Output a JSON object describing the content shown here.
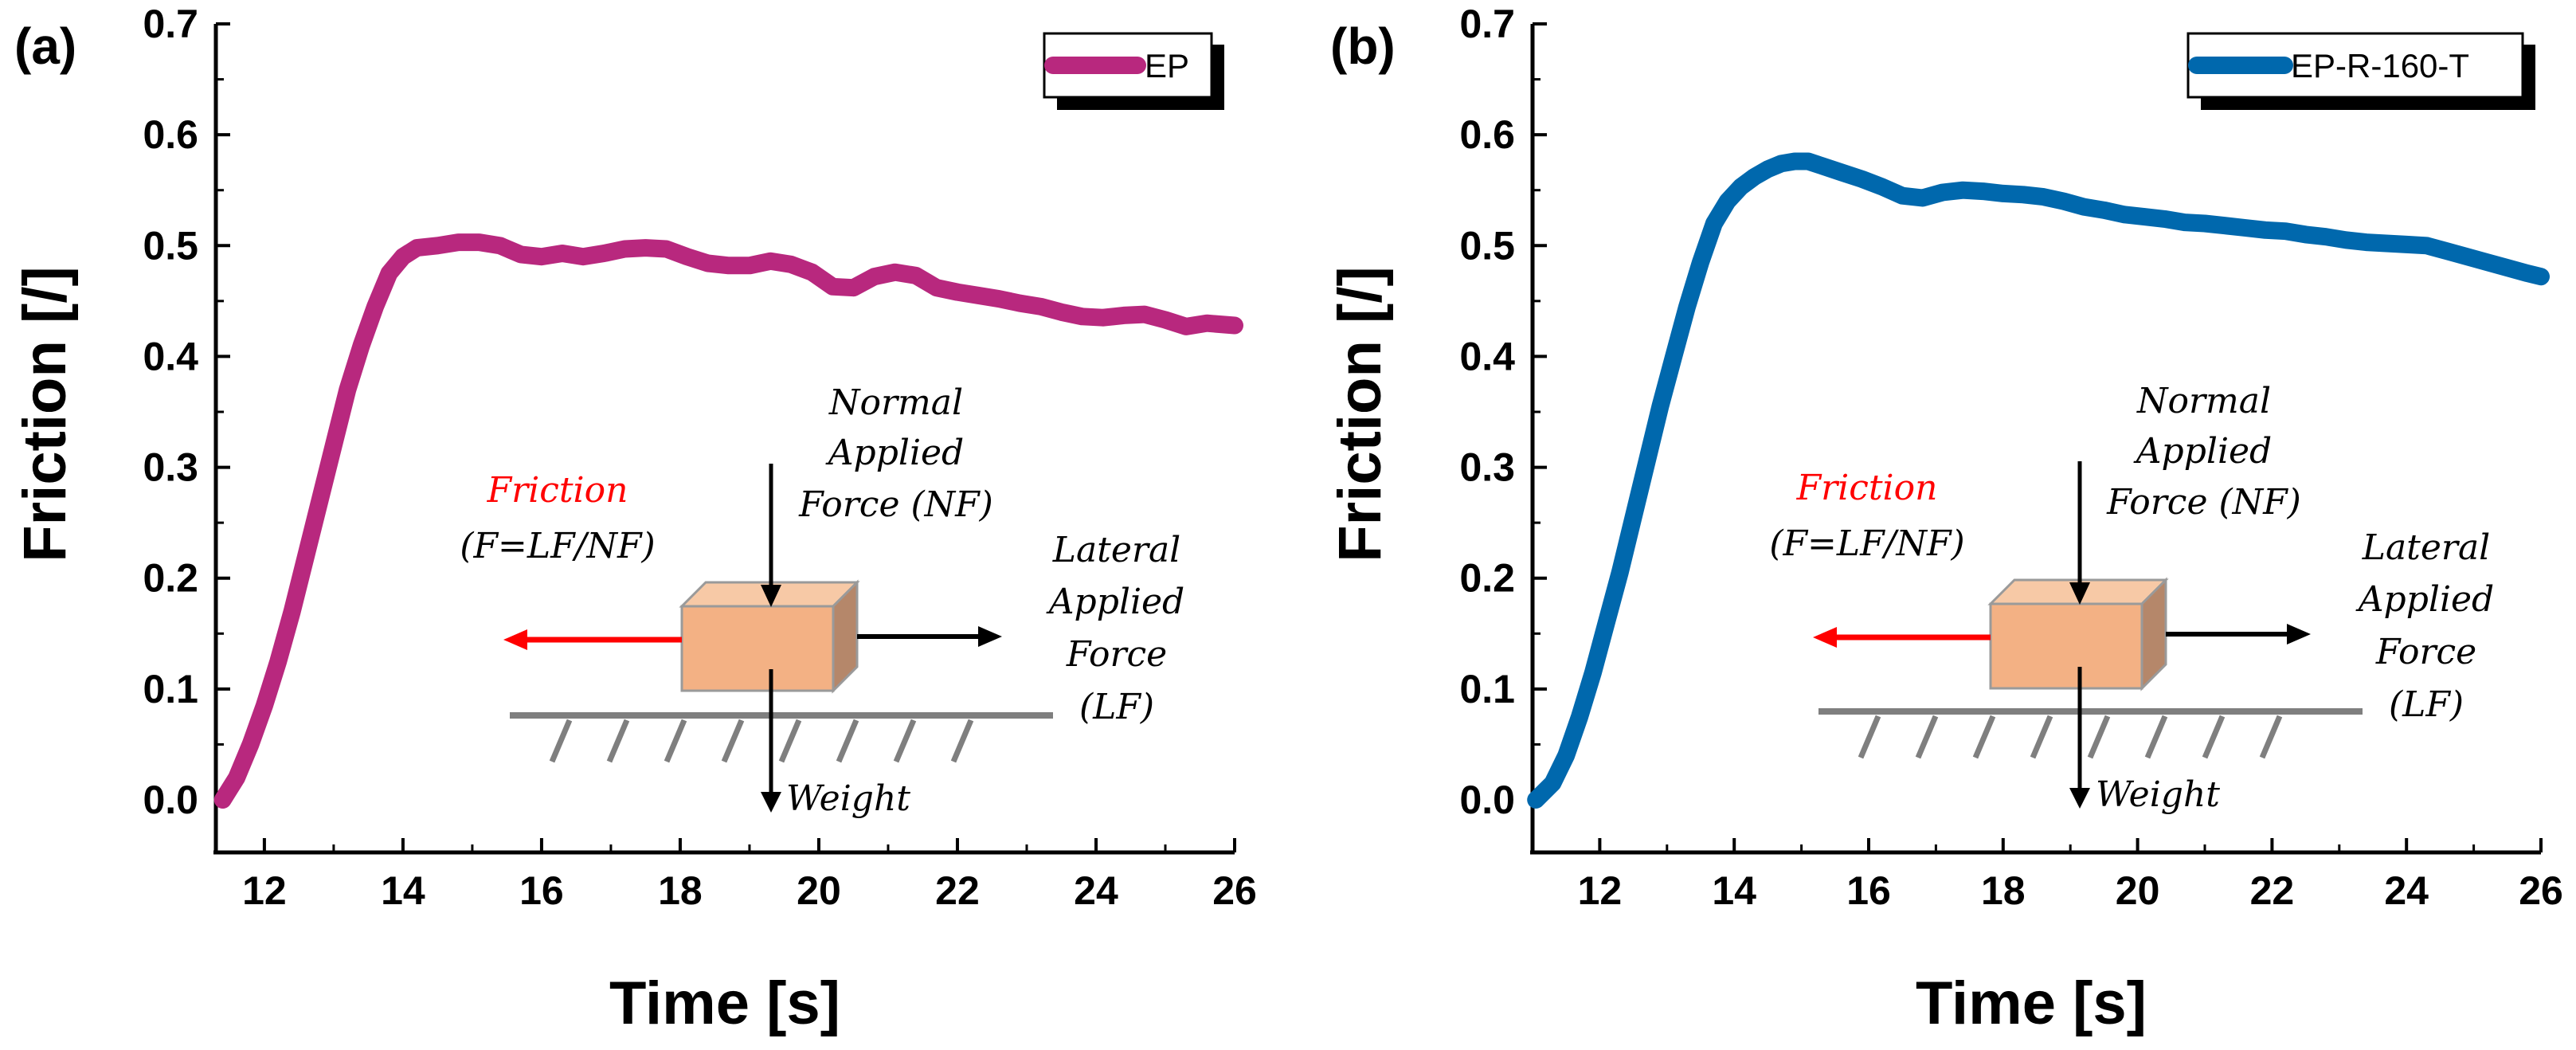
{
  "colors": {
    "ep": "#b8287e",
    "ep_r_160_t": "#0068ad",
    "friction_arrow": "#ff0000",
    "block_front": "#f3b184",
    "block_top": "#f7c9a6",
    "block_side": "#b5876a",
    "ground": "#7f7f7f"
  },
  "diagram": {
    "normal_line1": "Normal",
    "normal_line2": "Applied",
    "normal_line3": "Force (NF)",
    "friction_line1": "Friction",
    "friction_line2": "(F=LF/NF)",
    "lateral_line1": "Lateral",
    "lateral_line2": "Applied",
    "lateral_line3": "Force",
    "lateral_line4": "(LF)",
    "weight": "Weight"
  },
  "chart_data": [
    {
      "type": "line",
      "panel_label": "(a)",
      "xlabel": "Time [s]",
      "ylabel": "Friction [/]",
      "xlim": [
        11.3,
        26
      ],
      "ylim": [
        -0.01,
        0.7
      ],
      "xticks": [
        "12",
        "14",
        "16",
        "18",
        "20",
        "22",
        "24",
        "26"
      ],
      "yticks": [
        "0.0",
        "0.1",
        "0.2",
        "0.3",
        "0.4",
        "0.5",
        "0.6",
        "0.7"
      ],
      "legend_position": "top-right",
      "series": [
        {
          "name": "EP",
          "x": [
            11.4,
            11.6,
            11.8,
            12.0,
            12.2,
            12.4,
            12.6,
            12.8,
            13.0,
            13.2,
            13.4,
            13.6,
            13.8,
            14.0,
            14.2,
            14.5,
            14.8,
            15.1,
            15.4,
            15.7,
            16.0,
            16.3,
            16.6,
            16.9,
            17.2,
            17.5,
            17.8,
            18.1,
            18.4,
            18.7,
            19.0,
            19.3,
            19.6,
            19.9,
            20.2,
            20.5,
            20.8,
            21.1,
            21.4,
            21.7,
            22.0,
            22.3,
            22.6,
            22.9,
            23.2,
            23.5,
            23.8,
            24.1,
            24.4,
            24.7,
            25.0,
            25.3,
            25.6,
            26.0
          ],
          "y": [
            0.0,
            0.02,
            0.05,
            0.085,
            0.125,
            0.17,
            0.22,
            0.27,
            0.32,
            0.37,
            0.41,
            0.445,
            0.475,
            0.49,
            0.498,
            0.5,
            0.503,
            0.503,
            0.5,
            0.492,
            0.49,
            0.493,
            0.49,
            0.493,
            0.497,
            0.498,
            0.497,
            0.49,
            0.484,
            0.482,
            0.482,
            0.486,
            0.483,
            0.476,
            0.463,
            0.462,
            0.472,
            0.476,
            0.473,
            0.462,
            0.458,
            0.455,
            0.452,
            0.448,
            0.445,
            0.44,
            0.436,
            0.435,
            0.437,
            0.438,
            0.433,
            0.427,
            0.43,
            0.428
          ]
        }
      ]
    },
    {
      "type": "line",
      "panel_label": "(b)",
      "xlabel": "Time [s]",
      "ylabel": "Friction [/]",
      "xlim": [
        11.0,
        26
      ],
      "ylim": [
        -0.01,
        0.7
      ],
      "xticks": [
        "12",
        "14",
        "16",
        "18",
        "20",
        "22",
        "24",
        "26"
      ],
      "yticks": [
        "0.0",
        "0.1",
        "0.2",
        "0.3",
        "0.4",
        "0.5",
        "0.6",
        "0.7"
      ],
      "legend_position": "top-right",
      "series": [
        {
          "name": "EP-R-160-T",
          "x": [
            11.05,
            11.3,
            11.5,
            11.7,
            11.9,
            12.1,
            12.3,
            12.5,
            12.7,
            12.9,
            13.1,
            13.3,
            13.5,
            13.7,
            13.9,
            14.1,
            14.3,
            14.5,
            14.7,
            14.9,
            15.1,
            15.3,
            15.6,
            15.9,
            16.2,
            16.5,
            16.8,
            17.1,
            17.4,
            17.7,
            18.0,
            18.3,
            18.6,
            18.9,
            19.2,
            19.5,
            19.8,
            20.1,
            20.4,
            20.7,
            21.0,
            21.3,
            21.6,
            21.9,
            22.2,
            22.5,
            22.8,
            23.1,
            23.4,
            23.7,
            24.0,
            24.3,
            24.6,
            24.9,
            25.2,
            25.5,
            25.8,
            26.0
          ],
          "y": [
            0.0,
            0.015,
            0.04,
            0.075,
            0.115,
            0.16,
            0.205,
            0.255,
            0.305,
            0.355,
            0.4,
            0.445,
            0.485,
            0.52,
            0.54,
            0.553,
            0.562,
            0.569,
            0.574,
            0.576,
            0.576,
            0.572,
            0.566,
            0.56,
            0.553,
            0.545,
            0.543,
            0.548,
            0.55,
            0.549,
            0.547,
            0.546,
            0.544,
            0.54,
            0.535,
            0.532,
            0.528,
            0.526,
            0.524,
            0.521,
            0.52,
            0.518,
            0.516,
            0.514,
            0.513,
            0.51,
            0.508,
            0.505,
            0.503,
            0.502,
            0.501,
            0.5,
            0.495,
            0.49,
            0.485,
            0.48,
            0.475,
            0.472
          ]
        }
      ]
    }
  ]
}
